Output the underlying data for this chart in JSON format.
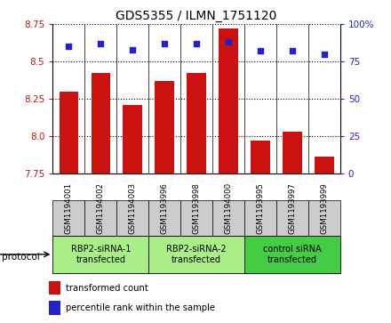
{
  "title": "GDS5355 / ILMN_1751120",
  "samples": [
    "GSM1194001",
    "GSM1194002",
    "GSM1194003",
    "GSM1193996",
    "GSM1193998",
    "GSM1194000",
    "GSM1193995",
    "GSM1193997",
    "GSM1193999"
  ],
  "transformed_counts": [
    8.3,
    8.42,
    8.21,
    8.37,
    8.42,
    8.72,
    7.97,
    8.03,
    7.86
  ],
  "percentile_ranks": [
    85,
    87,
    83,
    87,
    87,
    88,
    82,
    82,
    80
  ],
  "ylim_left": [
    7.75,
    8.75
  ],
  "yticks_left": [
    7.75,
    8.0,
    8.25,
    8.5,
    8.75
  ],
  "yticks_right": [
    0,
    25,
    50,
    75,
    100
  ],
  "bar_color": "#CC1111",
  "dot_color": "#2222CC",
  "groups": [
    {
      "label": "RBP2-siRNA-1\ntransfected",
      "indices": [
        0,
        1,
        2
      ],
      "color": "#aaee88"
    },
    {
      "label": "RBP2-siRNA-2\ntransfected",
      "indices": [
        3,
        4,
        5
      ],
      "color": "#aaee88"
    },
    {
      "label": "control siRNA\ntransfected",
      "indices": [
        6,
        7,
        8
      ],
      "color": "#44cc44"
    }
  ],
  "protocol_label": "protocol",
  "legend_items": [
    {
      "color": "#CC1111",
      "label": "transformed count"
    },
    {
      "color": "#2222CC",
      "label": "percentile rank within the sample"
    }
  ],
  "background_color": "#ffffff",
  "sample_cell_color": "#cccccc",
  "grid_linestyle": "dotted"
}
